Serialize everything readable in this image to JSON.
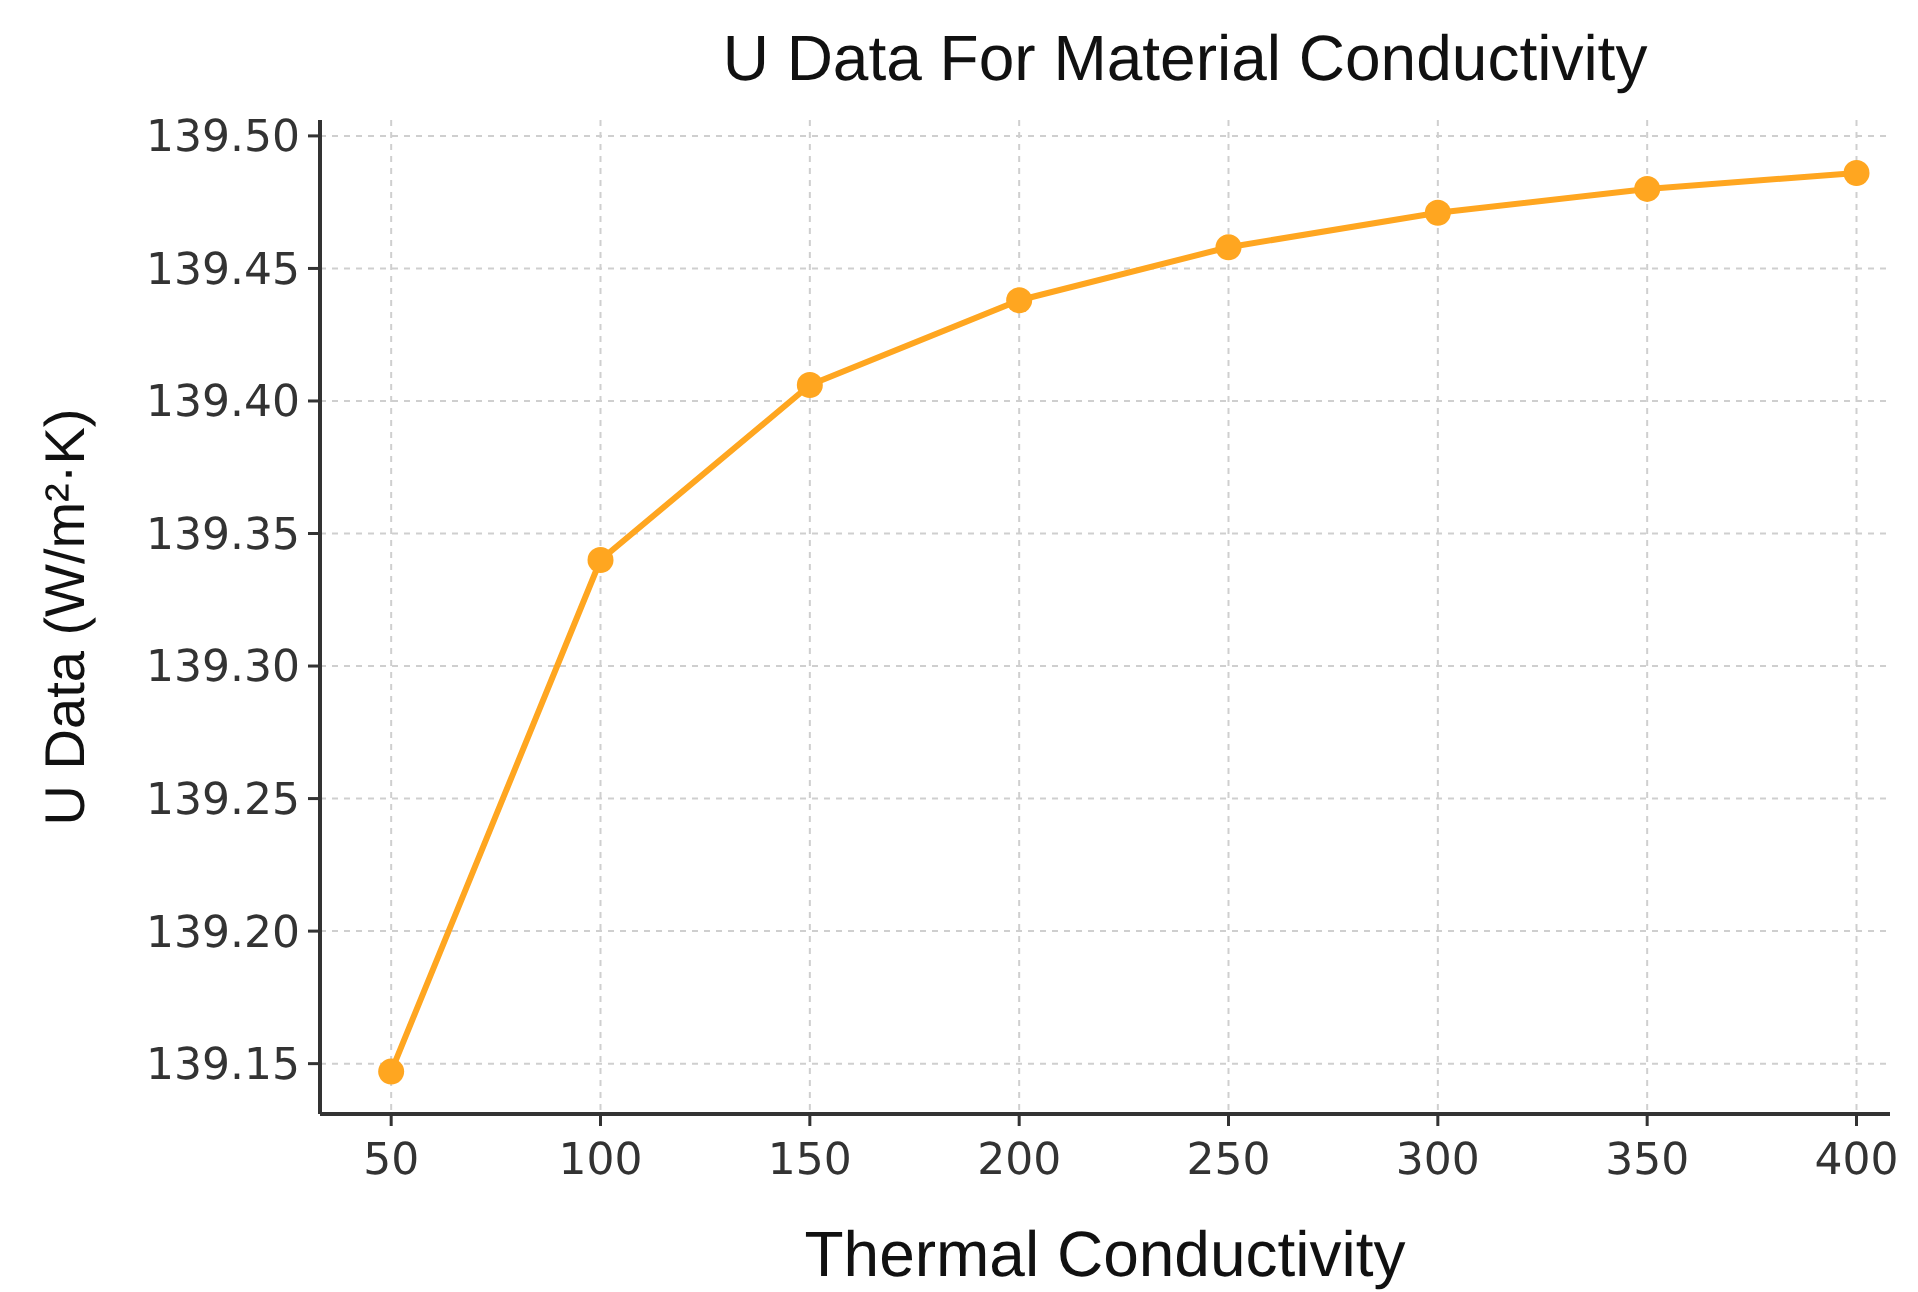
{
  "chart_data": {
    "type": "line",
    "title": "U Data For Material Conductivity",
    "xlabel": "Thermal Conductivity",
    "ylabel": "U Data (W/m²·K)",
    "x": [
      50,
      100,
      150,
      200,
      250,
      300,
      350,
      400
    ],
    "series": [
      {
        "color": "#ffa620",
        "values": [
          139.147,
          139.34,
          139.406,
          139.438,
          139.458,
          139.471,
          139.48,
          139.486
        ]
      }
    ],
    "xlim": [
      33,
      408
    ],
    "xticks": [
      50,
      100,
      150,
      200,
      250,
      300,
      350,
      400
    ],
    "ylim": [
      139.131,
      139.506
    ],
    "yticks": [
      {
        "value": 139.15,
        "label": "139.15"
      },
      {
        "value": 139.2,
        "label": "139.20"
      },
      {
        "value": 139.25,
        "label": "139.25"
      },
      {
        "value": 139.3,
        "label": "139.30"
      },
      {
        "value": 139.35,
        "label": "139.35"
      },
      {
        "value": 139.4,
        "label": "139.40"
      },
      {
        "value": 139.45,
        "label": "139.45"
      },
      {
        "value": 139.5,
        "label": "139.50"
      }
    ],
    "grid": true,
    "marker": "circle",
    "line_style": "solid"
  }
}
